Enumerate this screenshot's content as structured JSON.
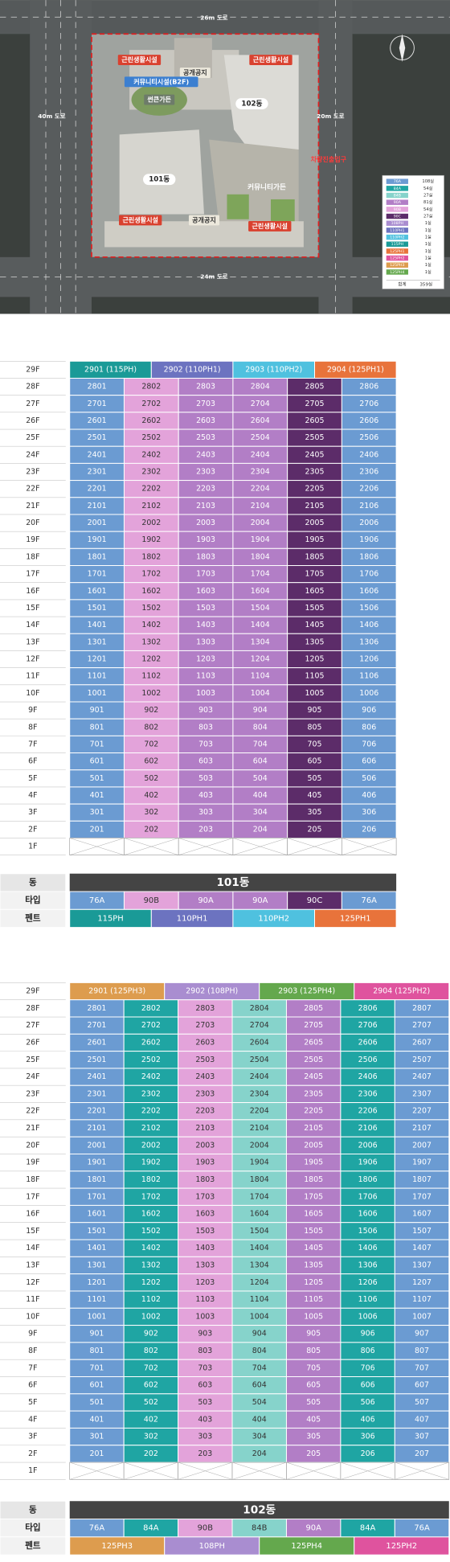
{
  "site_map": {
    "labels": [
      "26m 도로",
      "40m 도로",
      "20m 도로",
      "24m 도로",
      "근린생활시설",
      "공개공지",
      "근린생활시설",
      "커뮤니티시설(B2F)",
      "썬큰가든",
      "102동",
      "101동",
      "차량진출입구",
      "커뮤니티가든",
      "근린생활시설",
      "공개공지",
      "근린생활시설"
    ],
    "legend": {
      "items": [
        {
          "type": "76A",
          "count": "108실",
          "color": "#6b9bd2"
        },
        {
          "type": "84A",
          "count": "54실",
          "color": "#1fa5a3"
        },
        {
          "type": "84B",
          "count": "27실",
          "color": "#86d3cb"
        },
        {
          "type": "90A",
          "count": "81실",
          "color": "#b27ec6"
        },
        {
          "type": "90B",
          "count": "54실",
          "color": "#e3a3da"
        },
        {
          "type": "90C",
          "count": "27실",
          "color": "#5c2c69"
        },
        {
          "type": "108PH",
          "count": "1실",
          "color": "#a98dd0"
        },
        {
          "type": "110PH1",
          "count": "1실",
          "color": "#6c73c0"
        },
        {
          "type": "110PH2",
          "count": "1실",
          "color": "#4fc1df"
        },
        {
          "type": "115PH",
          "count": "1실",
          "color": "#1a9a97"
        },
        {
          "type": "125PH1",
          "count": "1실",
          "color": "#e8733b"
        },
        {
          "type": "125PH2",
          "count": "1실",
          "color": "#df539e"
        },
        {
          "type": "125PH3",
          "count": "1실",
          "color": "#dd9c4e"
        },
        {
          "type": "125PH4",
          "count": "1실",
          "color": "#64a84d"
        }
      ],
      "total_label": "합계",
      "total": "359실"
    }
  },
  "floors": [
    "29F",
    "28F",
    "27F",
    "26F",
    "25F",
    "24F",
    "23F",
    "22F",
    "21F",
    "20F",
    "19F",
    "18F",
    "17F",
    "16F",
    "15F",
    "14F",
    "13F",
    "12F",
    "11F",
    "10F",
    "9F",
    "8F",
    "7F",
    "6F",
    "5F",
    "4F",
    "3F",
    "2F",
    "1F"
  ],
  "row_labels": {
    "building": "동",
    "type": "타입",
    "penthouse": "펜트"
  },
  "table_101": {
    "building": "101동",
    "header": [
      {
        "label": "2901 (115PH)",
        "color": "#1a9a97"
      },
      {
        "label": "2902 (110PH1)",
        "color": "#6c73c0"
      },
      {
        "label": "2903 (110PH2)",
        "color": "#4fc1df"
      },
      {
        "label": "2904 (125PH1)",
        "color": "#e8733b"
      }
    ],
    "columns": [
      {
        "type": "76A",
        "color": "#6b9bd2",
        "text_color": "#ffffff"
      },
      {
        "type": "90B",
        "color": "#e3a3da",
        "text_color": "#333333"
      },
      {
        "type": "90A",
        "color": "#b27ec6",
        "text_color": "#ffffff"
      },
      {
        "type": "90A",
        "color": "#b27ec6",
        "text_color": "#ffffff"
      },
      {
        "type": "90C",
        "color": "#5c2c69",
        "text_color": "#ffffff"
      },
      {
        "type": "76A",
        "color": "#6b9bd2",
        "text_color": "#ffffff"
      }
    ],
    "penthouses": [
      {
        "name": "115PH",
        "color": "#1a9a97"
      },
      {
        "name": "110PH1",
        "color": "#6c73c0"
      },
      {
        "name": "110PH2",
        "color": "#4fc1df"
      },
      {
        "name": "125PH1",
        "color": "#e8733b"
      }
    ],
    "units": [
      [
        "2801",
        "2802",
        "2803",
        "2804",
        "2805",
        "2806"
      ],
      [
        "2701",
        "2702",
        "2703",
        "2704",
        "2705",
        "2706"
      ],
      [
        "2601",
        "2602",
        "2603",
        "2604",
        "2605",
        "2606"
      ],
      [
        "2501",
        "2502",
        "2503",
        "2504",
        "2505",
        "2506"
      ],
      [
        "2401",
        "2402",
        "2403",
        "2404",
        "2405",
        "2406"
      ],
      [
        "2301",
        "2302",
        "2303",
        "2304",
        "2305",
        "2306"
      ],
      [
        "2201",
        "2202",
        "2203",
        "2204",
        "2205",
        "2206"
      ],
      [
        "2101",
        "2102",
        "2103",
        "2104",
        "2105",
        "2106"
      ],
      [
        "2001",
        "2002",
        "2003",
        "2004",
        "2005",
        "2006"
      ],
      [
        "1901",
        "1902",
        "1903",
        "1904",
        "1905",
        "1906"
      ],
      [
        "1801",
        "1802",
        "1803",
        "1804",
        "1805",
        "1806"
      ],
      [
        "1701",
        "1702",
        "1703",
        "1704",
        "1705",
        "1706"
      ],
      [
        "1601",
        "1602",
        "1603",
        "1604",
        "1605",
        "1606"
      ],
      [
        "1501",
        "1502",
        "1503",
        "1504",
        "1505",
        "1506"
      ],
      [
        "1401",
        "1402",
        "1403",
        "1404",
        "1405",
        "1406"
      ],
      [
        "1301",
        "1302",
        "1303",
        "1304",
        "1305",
        "1306"
      ],
      [
        "1201",
        "1202",
        "1203",
        "1204",
        "1205",
        "1206"
      ],
      [
        "1101",
        "1102",
        "1103",
        "1104",
        "1105",
        "1106"
      ],
      [
        "1001",
        "1002",
        "1003",
        "1004",
        "1005",
        "1006"
      ],
      [
        "901",
        "902",
        "903",
        "904",
        "905",
        "906"
      ],
      [
        "801",
        "802",
        "803",
        "804",
        "805",
        "806"
      ],
      [
        "701",
        "702",
        "703",
        "704",
        "705",
        "706"
      ],
      [
        "601",
        "602",
        "603",
        "604",
        "605",
        "606"
      ],
      [
        "501",
        "502",
        "503",
        "504",
        "505",
        "506"
      ],
      [
        "401",
        "402",
        "403",
        "404",
        "405",
        "406"
      ],
      [
        "301",
        "302",
        "303",
        "304",
        "305",
        "306"
      ],
      [
        "201",
        "202",
        "203",
        "204",
        "205",
        "206"
      ]
    ]
  },
  "table_102": {
    "building": "102동",
    "header": [
      {
        "label": "2901 (125PH3)",
        "color": "#dd9c4e"
      },
      {
        "label": "2902 (108PH)",
        "color": "#a98dd0"
      },
      {
        "label": "2903 (125PH4)",
        "color": "#64a84d"
      },
      {
        "label": "2904 (125PH2)",
        "color": "#df539e"
      }
    ],
    "columns": [
      {
        "type": "76A",
        "color": "#6b9bd2",
        "text_color": "#ffffff"
      },
      {
        "type": "84A",
        "color": "#1fa5a3",
        "text_color": "#ffffff"
      },
      {
        "type": "90B",
        "color": "#e3a3da",
        "text_color": "#333333"
      },
      {
        "type": "84B",
        "color": "#86d3cb",
        "text_color": "#333333"
      },
      {
        "type": "90A",
        "color": "#b27ec6",
        "text_color": "#ffffff"
      },
      {
        "type": "84A",
        "color": "#1fa5a3",
        "text_color": "#ffffff"
      },
      {
        "type": "76A",
        "color": "#6b9bd2",
        "text_color": "#ffffff"
      }
    ],
    "penthouses": [
      {
        "name": "125PH3",
        "color": "#dd9c4e"
      },
      {
        "name": "108PH",
        "color": "#a98dd0"
      },
      {
        "name": "125PH4",
        "color": "#64a84d"
      },
      {
        "name": "125PH2",
        "color": "#df539e"
      }
    ],
    "units": [
      [
        "2801",
        "2802",
        "2803",
        "2804",
        "2805",
        "2806",
        "2807"
      ],
      [
        "2701",
        "2702",
        "2703",
        "2704",
        "2705",
        "2706",
        "2707"
      ],
      [
        "2601",
        "2602",
        "2603",
        "2604",
        "2605",
        "2606",
        "2607"
      ],
      [
        "2501",
        "2502",
        "2503",
        "2504",
        "2505",
        "2506",
        "2507"
      ],
      [
        "2401",
        "2402",
        "2403",
        "2404",
        "2405",
        "2406",
        "2407"
      ],
      [
        "2301",
        "2302",
        "2303",
        "2304",
        "2305",
        "2306",
        "2307"
      ],
      [
        "2201",
        "2202",
        "2203",
        "2204",
        "2205",
        "2206",
        "2207"
      ],
      [
        "2101",
        "2102",
        "2103",
        "2104",
        "2105",
        "2106",
        "2107"
      ],
      [
        "2001",
        "2002",
        "2003",
        "2004",
        "2005",
        "2006",
        "2007"
      ],
      [
        "1901",
        "1902",
        "1903",
        "1904",
        "1905",
        "1906",
        "1907"
      ],
      [
        "1801",
        "1802",
        "1803",
        "1804",
        "1805",
        "1806",
        "1807"
      ],
      [
        "1701",
        "1702",
        "1703",
        "1704",
        "1705",
        "1706",
        "1707"
      ],
      [
        "1601",
        "1602",
        "1603",
        "1604",
        "1605",
        "1606",
        "1607"
      ],
      [
        "1501",
        "1502",
        "1503",
        "1504",
        "1505",
        "1506",
        "1507"
      ],
      [
        "1401",
        "1402",
        "1403",
        "1404",
        "1405",
        "1406",
        "1407"
      ],
      [
        "1301",
        "1302",
        "1303",
        "1304",
        "1305",
        "1306",
        "1307"
      ],
      [
        "1201",
        "1202",
        "1203",
        "1204",
        "1205",
        "1206",
        "1207"
      ],
      [
        "1101",
        "1102",
        "1103",
        "1104",
        "1105",
        "1106",
        "1107"
      ],
      [
        "1001",
        "1002",
        "1003",
        "1004",
        "1005",
        "1006",
        "1007"
      ],
      [
        "901",
        "902",
        "903",
        "904",
        "905",
        "906",
        "907"
      ],
      [
        "801",
        "802",
        "803",
        "804",
        "805",
        "806",
        "807"
      ],
      [
        "701",
        "702",
        "703",
        "704",
        "705",
        "706",
        "707"
      ],
      [
        "601",
        "602",
        "603",
        "604",
        "605",
        "606",
        "607"
      ],
      [
        "501",
        "502",
        "503",
        "504",
        "505",
        "506",
        "507"
      ],
      [
        "401",
        "402",
        "403",
        "404",
        "405",
        "406",
        "407"
      ],
      [
        "301",
        "302",
        "303",
        "304",
        "305",
        "306",
        "307"
      ],
      [
        "201",
        "202",
        "203",
        "204",
        "205",
        "206",
        "207"
      ]
    ]
  }
}
